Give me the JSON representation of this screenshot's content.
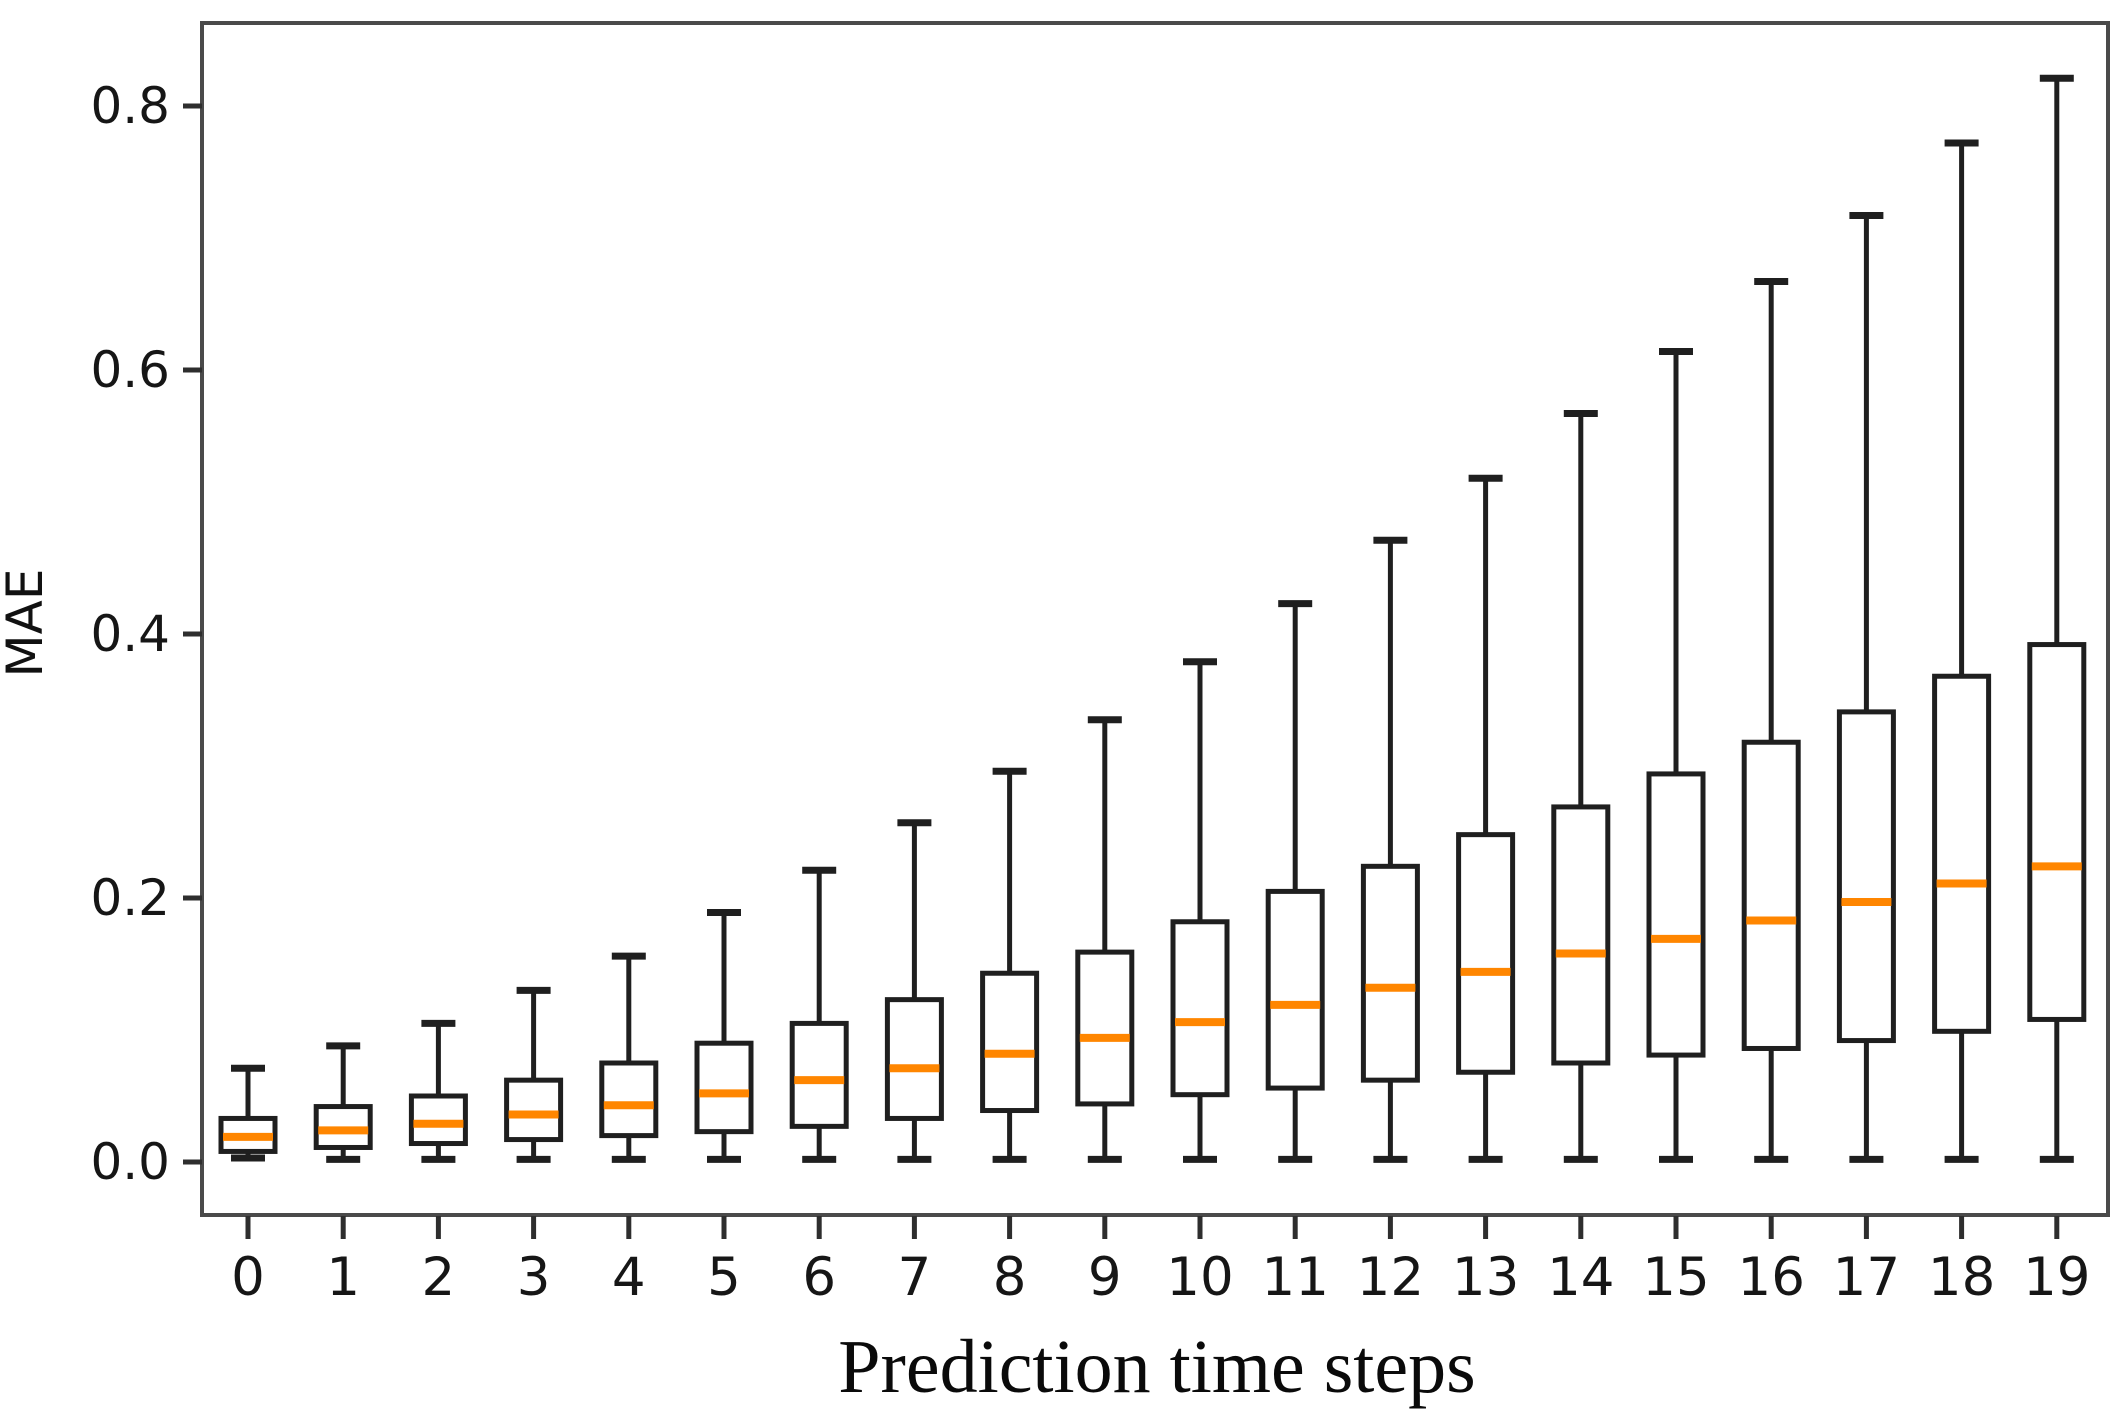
{
  "figure": {
    "background": "#ffffff",
    "frame_color": "#4a4a4a",
    "box_line_color": "#1f1f1f",
    "median_color": "#ff8600",
    "tick_color": "#2e2e2e",
    "text_color": "#141414"
  },
  "chart_data": {
    "type": "boxplot",
    "title": "",
    "xlabel": "Prediction time steps",
    "ylabel": "MAE",
    "categories": [
      "0",
      "1",
      "2",
      "3",
      "4",
      "5",
      "6",
      "7",
      "8",
      "9",
      "10",
      "11",
      "12",
      "13",
      "14",
      "15",
      "16",
      "17",
      "18",
      "19"
    ],
    "yticks": [
      {
        "label": "0.0",
        "value": 0.0
      },
      {
        "label": "0.2",
        "value": 0.2
      },
      {
        "label": "0.4",
        "value": 0.4
      },
      {
        "label": "0.6",
        "value": 0.6
      },
      {
        "label": "0.8",
        "value": 0.8
      }
    ],
    "ylim": [
      -0.04,
      0.863
    ],
    "grid": false,
    "legend": null,
    "boxes": [
      {
        "label": "0",
        "whislo": 0.003,
        "q1": 0.008,
        "med": 0.019,
        "q3": 0.033,
        "whishi": 0.071
      },
      {
        "label": "1",
        "whislo": 0.002,
        "q1": 0.011,
        "med": 0.024,
        "q3": 0.042,
        "whishi": 0.088
      },
      {
        "label": "2",
        "whislo": 0.002,
        "q1": 0.014,
        "med": 0.029,
        "q3": 0.05,
        "whishi": 0.105
      },
      {
        "label": "3",
        "whislo": 0.002,
        "q1": 0.017,
        "med": 0.036,
        "q3": 0.062,
        "whishi": 0.13
      },
      {
        "label": "4",
        "whislo": 0.002,
        "q1": 0.02,
        "med": 0.043,
        "q3": 0.075,
        "whishi": 0.156
      },
      {
        "label": "5",
        "whislo": 0.002,
        "q1": 0.023,
        "med": 0.052,
        "q3": 0.09,
        "whishi": 0.189
      },
      {
        "label": "6",
        "whislo": 0.002,
        "q1": 0.027,
        "med": 0.062,
        "q3": 0.105,
        "whishi": 0.221
      },
      {
        "label": "7",
        "whislo": 0.002,
        "q1": 0.033,
        "med": 0.071,
        "q3": 0.123,
        "whishi": 0.257
      },
      {
        "label": "8",
        "whislo": 0.002,
        "q1": 0.039,
        "med": 0.082,
        "q3": 0.143,
        "whishi": 0.296
      },
      {
        "label": "9",
        "whislo": 0.002,
        "q1": 0.044,
        "med": 0.094,
        "q3": 0.159,
        "whishi": 0.335
      },
      {
        "label": "10",
        "whislo": 0.002,
        "q1": 0.051,
        "med": 0.106,
        "q3": 0.182,
        "whishi": 0.379
      },
      {
        "label": "11",
        "whislo": 0.002,
        "q1": 0.056,
        "med": 0.119,
        "q3": 0.205,
        "whishi": 0.423
      },
      {
        "label": "12",
        "whislo": 0.002,
        "q1": 0.062,
        "med": 0.132,
        "q3": 0.224,
        "whishi": 0.471
      },
      {
        "label": "13",
        "whislo": 0.002,
        "q1": 0.068,
        "med": 0.144,
        "q3": 0.248,
        "whishi": 0.518
      },
      {
        "label": "14",
        "whislo": 0.002,
        "q1": 0.075,
        "med": 0.158,
        "q3": 0.269,
        "whishi": 0.567
      },
      {
        "label": "15",
        "whislo": 0.002,
        "q1": 0.081,
        "med": 0.169,
        "q3": 0.294,
        "whishi": 0.614
      },
      {
        "label": "16",
        "whislo": 0.002,
        "q1": 0.086,
        "med": 0.183,
        "q3": 0.318,
        "whishi": 0.667
      },
      {
        "label": "17",
        "whislo": 0.002,
        "q1": 0.092,
        "med": 0.197,
        "q3": 0.341,
        "whishi": 0.717
      },
      {
        "label": "18",
        "whislo": 0.002,
        "q1": 0.099,
        "med": 0.211,
        "q3": 0.368,
        "whishi": 0.772
      },
      {
        "label": "19",
        "whislo": 0.002,
        "q1": 0.108,
        "med": 0.224,
        "q3": 0.392,
        "whishi": 0.821
      }
    ]
  }
}
